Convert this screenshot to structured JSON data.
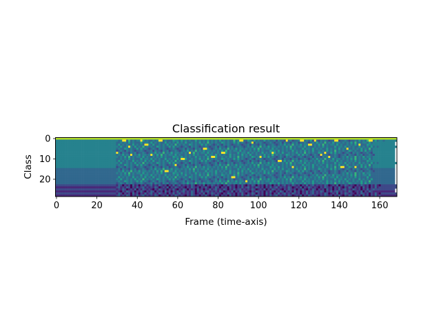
{
  "chart_data": {
    "type": "heatmap",
    "title": "Classification result",
    "xlabel": "Frame (time-axis)",
    "ylabel": "Class",
    "xlim": [
      -0.5,
      168.5
    ],
    "ylim": [
      28.5,
      -0.5
    ],
    "xticks": [
      0,
      20,
      40,
      60,
      80,
      100,
      120,
      140,
      160
    ],
    "yticks": [
      0,
      10,
      20
    ],
    "colormap": "viridis",
    "value_scale": "digit 0 (low) to 9 (high)",
    "colors": [
      "#440154",
      "#482878",
      "#3e4989",
      "#31688e",
      "#26828e",
      "#1f9e89",
      "#35b779",
      "#6ece58",
      "#b5de2b",
      "#fde725"
    ],
    "rows": [
      "8888888888888888888888888888888888888888888888888888888888888888888888888888888888888888888888888888888888888888888888888888888888888888888888888888888888888888888888888",
      "444444444444444444444444444444434353634344353433434353433354435343433534343534343534343363434335435343353433424332434233432343524324343233432334323343534363435344344444444444",
      "444444444444444444444444444444334343534333534435343433534343534353343435343634343354343353534323432434323343233424332434233432343534363435344343435363434435344444444444",
      "444444444444444444444444444444353434335343435343533434353436343433543433535343234324343233432334243324342334323435343634353443434353634344353433434353433354444444444444",
      "444444444444444444444444444444435334343534363434335434335353432343243432334323342433243423343234353436343534434343536343443534334343534333534435343433534343534344444444444",
      "444444444444444444444444444444343354343353534323432434323343233424332434233432343534363435344343435363434435343343435343335344353434335343435343533434353436344444444444",
      "444444444444444444444444444444234324343233432334243324342334323435343634353443434353634344353433434353433354435343433534343534353343435343634343354343353534344444444444",
      "444444444444444444444444444444342433243423343234353436343534434343536343443534334343534333534435343433534343534353343435343634343354343353534323432434323343244444444444",
      "444444444444444444444444444444343534363435344343435363434435343343435343335344353434335343435343533434353436343433543433535343234324343233432334243324342334324444444444",
      "444444444444444444444444444444434353634344353433434353433354435343433534343534353343435343634343354343353534323432434323343233424332434233432343534363435344344444444444",
      "444444444444444444444444444444334343534333534435343433534343534353343435343634343354343353534323432434323343233424332434233432343534363435344343435363434435344444444444",
      "444444444444444444444444444444353434335343435343533434353436343433543433535343234324343233432334243324342334323435343634353443434353634344353433434353433354444444444444",
      "444444444444444444444444444444435334343534363434335434335353432343243432334323342433243423343234353436343534434343536343443534334343534333534435343433534343534344444444444",
      "444444444444444444444444444444343354343353534323432434323343233424332434233432343534363435344343435363434435343343435343335344353434335343435343533434353436344444444444",
      "444444444444444444444444444444234324343233432334243324342334323435343634353443434353634344353433434353433354435343433534343534353343435343634343354343353534344444444444",
      "333333333333333333333333333333342433243423343234353436343534434343536343443534334343534333534435343433534343534353343435343634343354343353534323432434323343233333333333",
      "333333333333333333333333333333343534363435344343435363434435343343435343335344353434335343435343533434353436343433543433535343234324343233432334243324342334323333333333",
      "333333333333333333333333333333434353634344353433434353433354435343433534343534353343435343634343354343353534323432434323343233424332434233432343534363435344333333333333",
      "333333333333333333333333333333334343534333534435343433534343534353343435343634343354343353534323432434323343233424332434233432343534363435344343435363434435333333333333",
      "333333333333333333333333333333353434335343435343533434353436343433543433535343234324343233432334243324342334323435343634353443434353634344353433434353433353333333333333",
      "333333333333333333333333333333435334343534363434335434335353432343243432334323342433243423343234353436343534434343536343443534334343534333534435343433534343533333333333",
      "333333333333333333333333333333343354343353534323432434323343233424332434233432343534363435344343435363434435343343435343335344353434335343435343533434353436333333333333",
      "333333333333333333333333333333234324343233432334243324342334323435343634353443434353634344353433434353433354435343433534343534353343435343634343354343353534333333333333",
      "222222222222222222222222222222132021203120213123121321202131231212132012130213212102132120213102132021203120213123121321202131231212132012130213212102132120213102222222222222",
      "111111111111111111111111111111231213202131231212132012130213212102132120213102132021203120213123121321202131231212132012130213212102132120213102132021203120213122222222222",
      "222222222222222222222222222222121320121302132121021321202131021320212031202131231213202131231212132012130213212102132120213102132021203120213123121321202131232222222222",
      "111111111111111111111111111111210213212021310213202120312021312312132021312312121320121302132121021321202131021320212031202131231213202131231212132012130213211111111111",
      "222222222222222222222222222222132021203120213123121321202131231212132012130213212102132120213102132021203120213123121321202131231212132012130213212102132120213102222222222222",
      "111111111111111111111111111111231213202131231212132012130213212102132120213102132021203120213123121321202131231212132012130213212102132120213102132021203120213121111111111"
    ],
    "peaks": [
      [
        33,
        1
      ],
      [
        34,
        1
      ],
      [
        42,
        1
      ],
      [
        51,
        1
      ],
      [
        52,
        1
      ],
      [
        91,
        1
      ],
      [
        92,
        1
      ],
      [
        121,
        1
      ],
      [
        122,
        1
      ],
      [
        128,
        1
      ],
      [
        138,
        1
      ],
      [
        139,
        1
      ],
      [
        155,
        1
      ],
      [
        156,
        1
      ],
      [
        97,
        2
      ],
      [
        114,
        1
      ],
      [
        36,
        4
      ],
      [
        45,
        3
      ],
      [
        44,
        3
      ],
      [
        125,
        3
      ],
      [
        126,
        3
      ],
      [
        150,
        3
      ],
      [
        30,
        7
      ],
      [
        37,
        8
      ],
      [
        47,
        8
      ],
      [
        62,
        10
      ],
      [
        63,
        10
      ],
      [
        59,
        13
      ],
      [
        55,
        16
      ],
      [
        54,
        16
      ],
      [
        66,
        7
      ],
      [
        73,
        5
      ],
      [
        74,
        5
      ],
      [
        78,
        9
      ],
      [
        77,
        9
      ],
      [
        82,
        7
      ],
      [
        83,
        7
      ],
      [
        88,
        19
      ],
      [
        87,
        19
      ],
      [
        94,
        21
      ],
      [
        101,
        9
      ],
      [
        107,
        7
      ],
      [
        110,
        11
      ],
      [
        111,
        11
      ],
      [
        117,
        14
      ],
      [
        131,
        8
      ],
      [
        133,
        7
      ],
      [
        135,
        9
      ],
      [
        141,
        14
      ],
      [
        142,
        14
      ],
      [
        148,
        14
      ],
      [
        144,
        5
      ]
    ]
  }
}
